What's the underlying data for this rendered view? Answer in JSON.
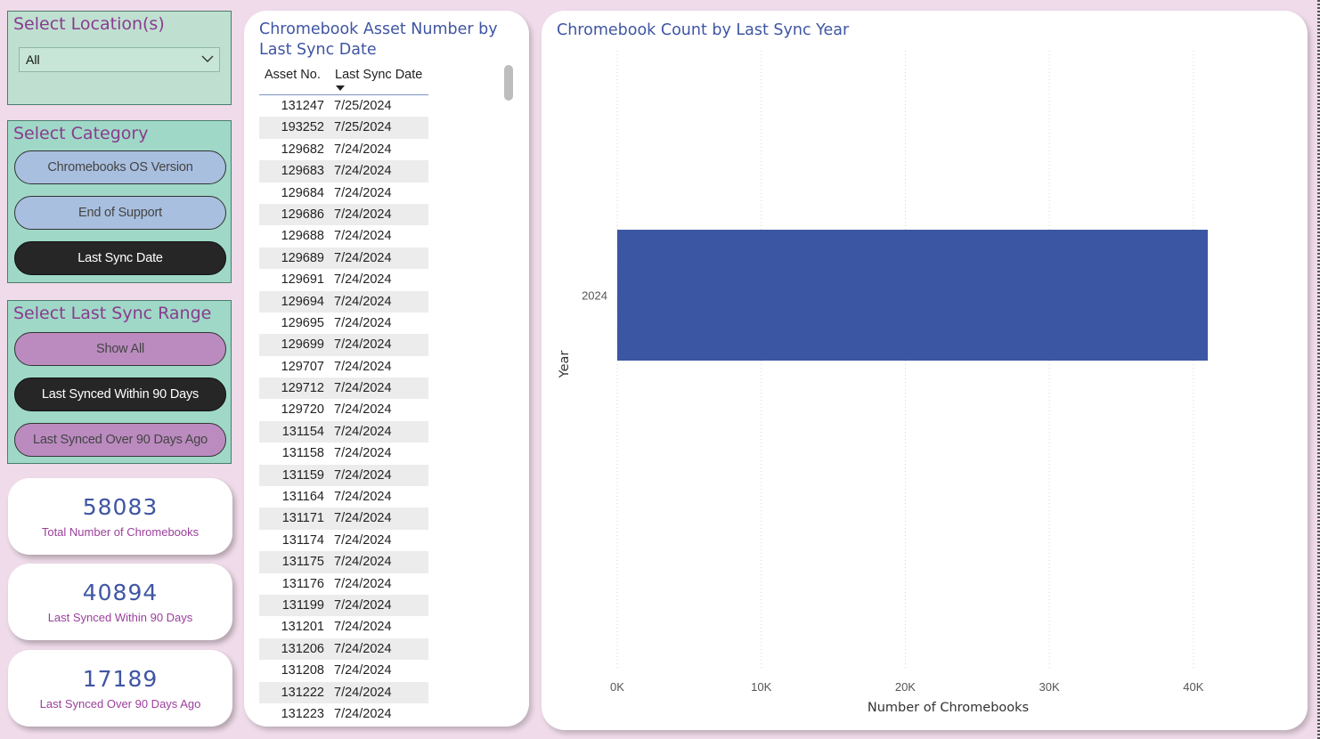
{
  "location": {
    "title": "Select Location(s)",
    "selected": "All"
  },
  "category": {
    "title": "Select Category",
    "buttons": [
      "Chromebooks OS Version",
      "End of Support",
      "Last Sync Date"
    ]
  },
  "range": {
    "title": "Select Last Sync Range",
    "buttons": [
      "Show All",
      "Last Synced Within 90 Days",
      "Last Synced Over 90 Days Ago"
    ]
  },
  "cards": [
    {
      "value": "58083",
      "label": "Total Number of Chromebooks"
    },
    {
      "value": "40894",
      "label": "Last Synced Within 90 Days"
    },
    {
      "value": "17189",
      "label": "Last Synced Over 90 Days Ago"
    }
  ],
  "table": {
    "title": "Chromebook Asset Number by Last Sync Date",
    "columns": [
      "Asset No.",
      "Last Sync Date"
    ],
    "rows": [
      [
        "131247",
        "7/25/2024"
      ],
      [
        "193252",
        "7/25/2024"
      ],
      [
        "129682",
        "7/24/2024"
      ],
      [
        "129683",
        "7/24/2024"
      ],
      [
        "129684",
        "7/24/2024"
      ],
      [
        "129686",
        "7/24/2024"
      ],
      [
        "129688",
        "7/24/2024"
      ],
      [
        "129689",
        "7/24/2024"
      ],
      [
        "129691",
        "7/24/2024"
      ],
      [
        "129694",
        "7/24/2024"
      ],
      [
        "129695",
        "7/24/2024"
      ],
      [
        "129699",
        "7/24/2024"
      ],
      [
        "129707",
        "7/24/2024"
      ],
      [
        "129712",
        "7/24/2024"
      ],
      [
        "129720",
        "7/24/2024"
      ],
      [
        "131154",
        "7/24/2024"
      ],
      [
        "131158",
        "7/24/2024"
      ],
      [
        "131159",
        "7/24/2024"
      ],
      [
        "131164",
        "7/24/2024"
      ],
      [
        "131171",
        "7/24/2024"
      ],
      [
        "131174",
        "7/24/2024"
      ],
      [
        "131175",
        "7/24/2024"
      ],
      [
        "131176",
        "7/24/2024"
      ],
      [
        "131199",
        "7/24/2024"
      ],
      [
        "131201",
        "7/24/2024"
      ],
      [
        "131206",
        "7/24/2024"
      ],
      [
        "131208",
        "7/24/2024"
      ],
      [
        "131222",
        "7/24/2024"
      ],
      [
        "131223",
        "7/24/2024"
      ]
    ]
  },
  "chart_data": {
    "type": "bar",
    "orientation": "horizontal",
    "title": "Chromebook Count by Last Sync Year",
    "xlabel": "Number of Chromebooks",
    "ylabel": "Year",
    "categories": [
      "2024"
    ],
    "values": [
      41000
    ],
    "xlim": [
      0,
      41000
    ],
    "xticks": [
      0,
      10000,
      20000,
      30000,
      40000
    ],
    "xtick_labels": [
      "0K",
      "10K",
      "20K",
      "30K",
      "40K"
    ],
    "grid": "vertical dotted",
    "bar_color": "#3b56a3"
  }
}
